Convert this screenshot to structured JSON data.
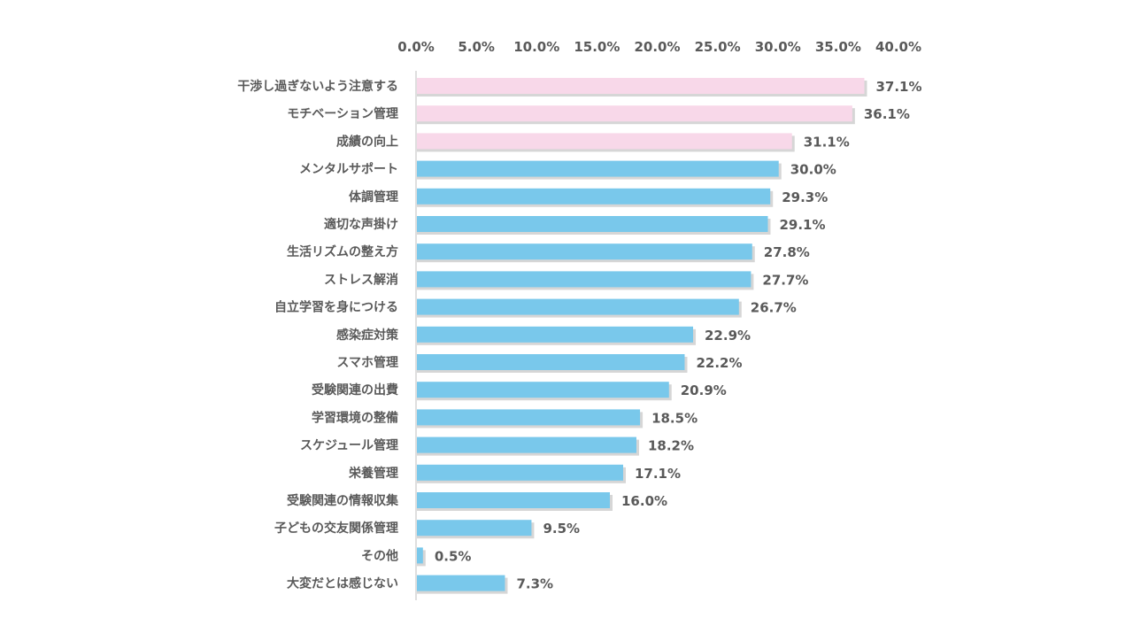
{
  "chart_data": {
    "type": "bar",
    "orientation": "horizontal",
    "title": "",
    "xlabel": "",
    "ylabel": "",
    "xlim": [
      0,
      40
    ],
    "tick_values": [
      0,
      5,
      10,
      15,
      20,
      25,
      30,
      35,
      40
    ],
    "tick_labels": [
      "0.0%",
      "5.0%",
      "10.0%",
      "15.0%",
      "20.0%",
      "25.0%",
      "30.0%",
      "35.0%",
      "40.0%"
    ],
    "axis_position": "top",
    "grid": false,
    "legend": "none",
    "categories": [
      "干渉し過ぎないよう注意する",
      "モチベーション管理",
      "成績の向上",
      "メンタルサポート",
      "体調管理",
      "適切な声掛け",
      "生活リズムの整え方",
      "ストレス解消",
      "自立学習を身につける",
      "感染症対策",
      "スマホ管理",
      "受験関連の出費",
      "学習環境の整備",
      "スケジュール管理",
      "栄養管理",
      "受験関連の情報収集",
      "子どもの交友関係管理",
      "その他",
      "大変だとは感じない"
    ],
    "values": [
      37.1,
      36.1,
      31.1,
      30.0,
      29.3,
      29.1,
      27.8,
      27.7,
      26.7,
      22.9,
      22.2,
      20.9,
      18.5,
      18.2,
      17.1,
      16.0,
      9.5,
      0.5,
      7.3
    ],
    "value_labels": [
      "37.1%",
      "36.1%",
      "31.1%",
      "30.0%",
      "29.3%",
      "29.1%",
      "27.8%",
      "27.7%",
      "26.7%",
      "22.9%",
      "22.2%",
      "20.9%",
      "18.5%",
      "18.2%",
      "17.1%",
      "16.0%",
      "9.5%",
      "0.5%",
      "7.3%"
    ],
    "highlight_count": 3,
    "colors": {
      "highlight": "#f8d8e9",
      "default": "#79c8eb",
      "shadow": "#c8c8c8",
      "axis": "#bfbfbf",
      "text": "#595959"
    }
  }
}
